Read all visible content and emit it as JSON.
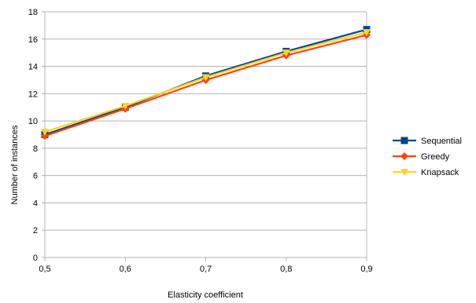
{
  "chart_data": {
    "type": "line",
    "title": "",
    "xlabel": "Elasticity coefficient",
    "ylabel": "Number of instances",
    "x": [
      "0,5",
      "0,6",
      "0,7",
      "0,8",
      "0,9"
    ],
    "ylim": [
      0,
      18
    ],
    "yticks": [
      0,
      2,
      4,
      6,
      8,
      10,
      12,
      14,
      16,
      18
    ],
    "grid": "horizontal",
    "legend_position": "right",
    "series": [
      {
        "name": "Sequential",
        "values": [
          9.0,
          11.0,
          13.3,
          15.1,
          16.7
        ],
        "color": "#004586",
        "marker": "square"
      },
      {
        "name": "Greedy",
        "values": [
          8.9,
          10.9,
          13.0,
          14.8,
          16.3
        ],
        "color": "#ff420e",
        "marker": "diamond"
      },
      {
        "name": "Knapsack",
        "values": [
          9.2,
          11.1,
          13.2,
          15.0,
          16.5
        ],
        "color": "#ffd320",
        "marker": "triangle"
      }
    ]
  }
}
